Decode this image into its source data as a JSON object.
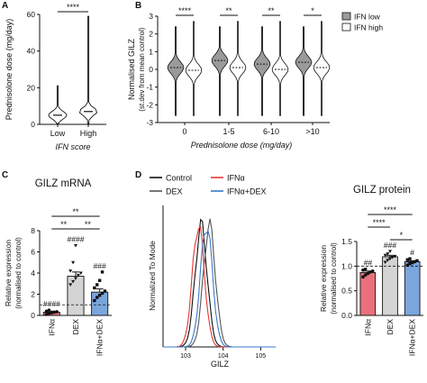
{
  "figure_label": "",
  "colors": {
    "ifn_low": "#9a9a9a",
    "ifn_high": "#ffffff",
    "ifna": "#e8717d",
    "dex": "#d4d4d4",
    "combo": "#7aa6dc",
    "control_line": "#111111",
    "ifna_line": "#e53935",
    "dex_line": "#555555",
    "combo_line": "#3a78c9"
  },
  "chart_data": [
    {
      "panel": "A",
      "type": "violin",
      "ylabel": "Prednisolone dose (mg/day)",
      "xlabel": "IFN score",
      "categories": [
        "Low",
        "High"
      ],
      "ylim": [
        0,
        60
      ],
      "yticks": [
        0,
        20,
        40,
        60
      ],
      "medians": [
        5,
        7
      ],
      "maxima": [
        21,
        59
      ],
      "significance": [
        {
          "between": [
            "Low",
            "High"
          ],
          "label": "****"
        }
      ]
    },
    {
      "panel": "B",
      "type": "violin",
      "ylabel": "Normalised GILZ",
      "ylabel2": "(st.dev from mean control)",
      "xlabel": "Prednisolone dose (mg/day)",
      "categories": [
        "0",
        "1-5",
        "6-10",
        ">10"
      ],
      "ylim": [
        -3,
        3
      ],
      "yticks": [
        -3,
        -2,
        -1,
        0,
        1,
        2,
        3
      ],
      "series": [
        {
          "name": "IFN low",
          "medians": [
            0.1,
            0.5,
            0.3,
            0.4
          ]
        },
        {
          "name": "IFN high",
          "medians": [
            -0.05,
            0.1,
            0.0,
            0.1
          ]
        }
      ],
      "significance": [
        "****",
        "**",
        "**",
        "*"
      ],
      "legend": "top-right"
    },
    {
      "panel": "C",
      "type": "bar",
      "title": "GILZ mRNA",
      "ylabel": "Relative expression",
      "ylabel2": "(normalised to control)",
      "categories": [
        "IFNα",
        "DEX",
        "IFNα+DEX"
      ],
      "values": [
        0.3,
        3.7,
        2.2
      ],
      "errors": [
        0.1,
        0.4,
        0.3
      ],
      "ylim": [
        0,
        8
      ],
      "yticks": [
        0,
        2,
        4,
        6,
        8
      ],
      "reference_line": 1,
      "points": [
        [
          0.1,
          0.2,
          0.25,
          0.3,
          0.35,
          0.4,
          0.5
        ],
        [
          2.9,
          3.2,
          3.5,
          3.8,
          4.0,
          4.2,
          5.0,
          6.6
        ],
        [
          1.4,
          1.7,
          1.9,
          2.1,
          2.3,
          2.6,
          2.9,
          3.3,
          4.1
        ]
      ],
      "bar_labels": [
        "####",
        "####",
        "###"
      ],
      "significance": [
        {
          "between": [
            "DEX",
            "IFNα+DEX"
          ],
          "label": "**",
          "level": 1
        },
        {
          "between": [
            "IFNα",
            "DEX"
          ],
          "label": "**",
          "level": 1
        },
        {
          "between": [
            "IFNα",
            "IFNα+DEX"
          ],
          "label": "**",
          "level": 2
        }
      ]
    },
    {
      "panel": "D",
      "type": "histogram",
      "ylabel": "Normalized To Mode",
      "xlabel": "GILZ",
      "xscale": "log",
      "xticks": [
        "10^3",
        "10^4",
        "10^5"
      ],
      "series": [
        {
          "name": "Control",
          "peak": 2600
        },
        {
          "name": "DEX",
          "peak": 4300
        },
        {
          "name": "IFNα",
          "peak": 2200
        },
        {
          "name": "IFNα+DEX",
          "peak": 3600
        }
      ],
      "legend": "top"
    },
    {
      "panel": "D-right",
      "type": "bar",
      "title": "GILZ protein",
      "ylabel": "Relative expression",
      "ylabel2": "(normalised to control)",
      "categories": [
        "IFNα",
        "DEX",
        "IFNα+DEX"
      ],
      "values": [
        0.87,
        1.19,
        1.09
      ],
      "errors": [
        0.03,
        0.03,
        0.02
      ],
      "ylim": [
        0.0,
        1.5
      ],
      "yticks": [
        0.0,
        0.5,
        1.0,
        1.5
      ],
      "reference_line": 1,
      "points": [
        [
          0.78,
          0.82,
          0.85,
          0.88,
          0.9,
          0.92,
          0.94
        ],
        [
          1.08,
          1.12,
          1.15,
          1.18,
          1.2,
          1.22,
          1.25,
          1.3
        ],
        [
          1.02,
          1.05,
          1.07,
          1.09,
          1.11,
          1.13,
          1.15
        ]
      ],
      "bar_labels": [
        "##",
        "###",
        "#"
      ],
      "significance": [
        {
          "between": [
            "DEX",
            "IFNα+DEX"
          ],
          "label": "*",
          "level": 1
        },
        {
          "between": [
            "IFNα",
            "DEX"
          ],
          "label": "****",
          "level": 2
        },
        {
          "between": [
            "IFNα",
            "IFNα+DEX"
          ],
          "label": "****",
          "level": 3
        }
      ]
    }
  ]
}
